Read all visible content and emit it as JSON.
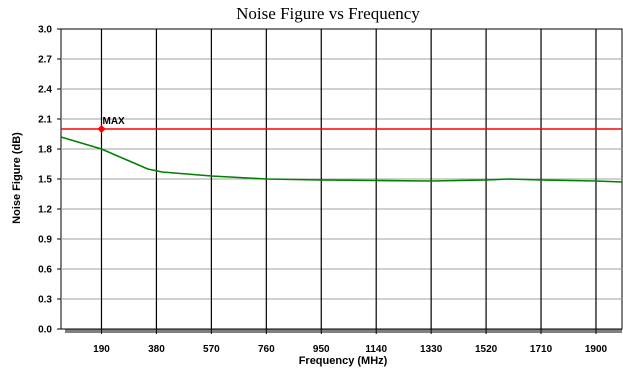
{
  "chart_data": {
    "type": "line",
    "title": "Noise Figure vs Frequency",
    "xlabel": "Frequency (MHz)",
    "ylabel": "Noise Figure (dB)",
    "xlim": [
      50,
      1990
    ],
    "ylim": [
      0,
      3.0
    ],
    "xticks": [
      190,
      380,
      570,
      760,
      950,
      1140,
      1330,
      1520,
      1710,
      1900
    ],
    "yticks": [
      0.0,
      0.3,
      0.6,
      0.9,
      1.2,
      1.5,
      1.8,
      2.1,
      2.4,
      2.7,
      3.0
    ],
    "ytick_labels": [
      "0.0",
      "0.3",
      "0.6",
      "0.9",
      "1.2",
      "1.5",
      "1.8",
      "2.1",
      "2.4",
      "2.7",
      "3.0"
    ],
    "grid": true,
    "series": [
      {
        "color": "#008000",
        "x": [
          50,
          190,
          350,
          400,
          570,
          760,
          950,
          1140,
          1330,
          1520,
          1600,
          1710,
          1900,
          1990
        ],
        "y": [
          1.92,
          1.8,
          1.6,
          1.57,
          1.53,
          1.5,
          1.49,
          1.485,
          1.48,
          1.49,
          1.5,
          1.49,
          1.48,
          1.47
        ]
      }
    ],
    "limit": {
      "label": "MAX",
      "value": 2.0,
      "color": "#ff0000",
      "marker_x": 190
    }
  }
}
